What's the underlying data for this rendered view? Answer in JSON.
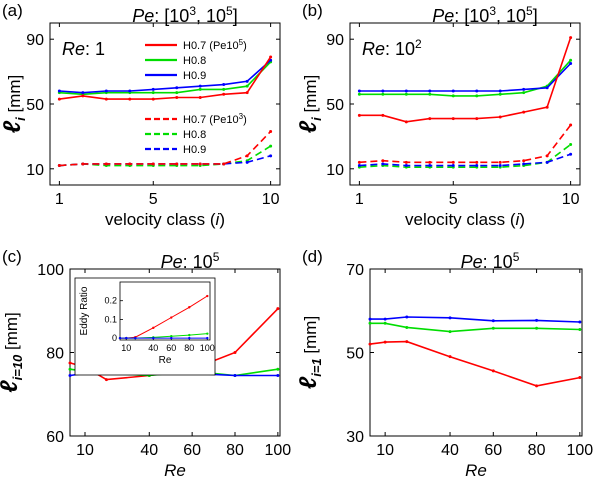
{
  "chart_data": [
    {
      "panel": "(a)",
      "type": "line",
      "title_prefix": "Pe",
      "title_rest": ": [10",
      "title_sup1": "3",
      "title_mid": ", 10",
      "title_sup2": "5",
      "title_end": "]",
      "tag": "Re",
      "tag_rest": ": 1",
      "xlabel": "velocity class (",
      "xlabel_var": "i",
      "xlabel_end": ")",
      "ylabel": "ℓ",
      "ylabel_sub": "i",
      "ylabel_unit": "[mm]",
      "xlim": [
        0.6,
        10.4
      ],
      "ylim": [
        0,
        100
      ],
      "xticks": [
        1,
        5,
        10
      ],
      "xticklabels": [
        "1",
        "5",
        "10"
      ],
      "yticks": [
        10,
        50,
        90
      ],
      "yticklabels": [
        "10",
        "50",
        "90"
      ],
      "legend": {
        "solid_entries": [
          {
            "name": "H0.7",
            "suffix": " (Pe10",
            "sup": "5",
            "end": ")",
            "color": "#ff0000"
          },
          {
            "name": "H0.8",
            "suffix": "",
            "color": "#00dd00"
          },
          {
            "name": "H0.9",
            "suffix": "",
            "color": "#0000ff"
          }
        ],
        "dashed_entries": [
          {
            "name": "H0.7",
            "suffix": " (Pe10",
            "sup": "3",
            "end": ")",
            "color": "#ff0000"
          },
          {
            "name": "H0.8",
            "suffix": "",
            "color": "#00dd00"
          },
          {
            "name": "H0.9",
            "suffix": "",
            "color": "#0000ff"
          }
        ]
      },
      "series": [
        {
          "color": "#00dd00",
          "style": "solid",
          "x": [
            1,
            2,
            3,
            4,
            5,
            6,
            7,
            8,
            9,
            10
          ],
          "y": [
            57,
            56,
            57,
            57,
            57,
            57,
            59,
            59,
            61,
            76
          ]
        },
        {
          "color": "#0000ff",
          "style": "solid",
          "x": [
            1,
            2,
            3,
            4,
            5,
            6,
            7,
            8,
            9,
            10
          ],
          "y": [
            58,
            57,
            58,
            58,
            59,
            60,
            61,
            62,
            64,
            77
          ]
        },
        {
          "color": "#ff0000",
          "style": "solid",
          "x": [
            1,
            2,
            3,
            4,
            5,
            6,
            7,
            8,
            9,
            10
          ],
          "y": [
            53,
            55,
            53,
            53,
            53,
            54,
            54,
            56,
            57,
            79
          ]
        },
        {
          "color": "#00dd00",
          "style": "dashed",
          "x": [
            1,
            2,
            3,
            4,
            5,
            6,
            7,
            8,
            9,
            10
          ],
          "y": [
            12,
            13,
            12,
            12,
            12,
            12,
            12,
            13,
            15,
            24
          ]
        },
        {
          "color": "#0000ff",
          "style": "dashed",
          "x": [
            1,
            2,
            3,
            4,
            5,
            6,
            7,
            8,
            9,
            10
          ],
          "y": [
            12,
            13,
            13,
            13,
            13,
            13,
            13,
            13,
            14,
            18
          ]
        },
        {
          "color": "#ff0000",
          "style": "dashed",
          "x": [
            1,
            2,
            3,
            4,
            5,
            6,
            7,
            8,
            9,
            10
          ],
          "y": [
            12,
            13,
            13,
            13,
            13,
            13,
            13,
            13,
            18,
            33
          ]
        }
      ]
    },
    {
      "panel": "(b)",
      "type": "line",
      "title_prefix": "Pe",
      "title_rest": ": [10",
      "title_sup1": "3",
      "title_mid": ", 10",
      "title_sup2": "5",
      "title_end": "]",
      "tag": "Re",
      "tag_rest": ": 10",
      "tag_sup": "2",
      "xlabel": "velocity class (",
      "xlabel_var": "i",
      "xlabel_end": ")",
      "ylabel": "ℓ",
      "ylabel_sub": "i",
      "ylabel_unit": "[mm]",
      "xlim": [
        0.6,
        10.4
      ],
      "ylim": [
        0,
        100
      ],
      "xticks": [
        1,
        5,
        10
      ],
      "xticklabels": [
        "1",
        "5",
        "10"
      ],
      "yticks": [
        10,
        50,
        90
      ],
      "yticklabels": [
        "10",
        "50",
        "90"
      ],
      "series": [
        {
          "color": "#00dd00",
          "style": "solid",
          "x": [
            1,
            2,
            3,
            4,
            5,
            6,
            7,
            8,
            9,
            10
          ],
          "y": [
            56,
            56,
            56,
            56,
            55,
            55,
            56,
            57,
            61,
            77
          ]
        },
        {
          "color": "#0000ff",
          "style": "solid",
          "x": [
            1,
            2,
            3,
            4,
            5,
            6,
            7,
            8,
            9,
            10
          ],
          "y": [
            58,
            58,
            58,
            58,
            58,
            58,
            58,
            59,
            60,
            75
          ]
        },
        {
          "color": "#ff0000",
          "style": "solid",
          "x": [
            1,
            2,
            3,
            4,
            5,
            6,
            7,
            8,
            9,
            10
          ],
          "y": [
            43,
            43,
            39,
            41,
            41,
            41,
            42,
            45,
            48,
            91
          ]
        },
        {
          "color": "#00dd00",
          "style": "dashed",
          "x": [
            1,
            2,
            3,
            4,
            5,
            6,
            7,
            8,
            9,
            10
          ],
          "y": [
            11,
            12,
            11,
            11,
            11,
            11,
            11,
            12,
            14,
            25
          ]
        },
        {
          "color": "#0000ff",
          "style": "dashed",
          "x": [
            1,
            2,
            3,
            4,
            5,
            6,
            7,
            8,
            9,
            10
          ],
          "y": [
            12,
            13,
            12,
            12,
            12,
            12,
            12,
            13,
            14,
            19
          ]
        },
        {
          "color": "#ff0000",
          "style": "dashed",
          "x": [
            1,
            2,
            3,
            4,
            5,
            6,
            7,
            8,
            9,
            10
          ],
          "y": [
            14,
            15,
            14,
            14,
            14,
            14,
            14,
            15,
            18,
            37
          ]
        }
      ]
    },
    {
      "panel": "(c)",
      "type": "line",
      "title_prefix": "Pe",
      "title_rest": ": 10",
      "title_sup1": "5",
      "xlabel_var": "Re",
      "ylabel": "ℓ",
      "ylabel_sub": "i=10",
      "ylabel_unit": "[mm]",
      "xlim": [
        3,
        101
      ],
      "ylim": [
        60,
        100
      ],
      "xticks": [
        10,
        40,
        60,
        80,
        100
      ],
      "xticklabels": [
        "10",
        "40",
        "60",
        "80",
        "100"
      ],
      "yticks": [
        60,
        80,
        100
      ],
      "yticklabels": [
        "60",
        "80",
        "100"
      ],
      "series": [
        {
          "color": "#ff0000",
          "style": "solid",
          "x": [
            3,
            10,
            20,
            40,
            60,
            80,
            100
          ],
          "y": [
            77.5,
            76.5,
            73.5,
            74.5,
            76,
            80,
            90.5
          ]
        },
        {
          "color": "#00dd00",
          "style": "solid",
          "x": [
            3,
            10,
            20,
            40,
            60,
            80,
            100
          ],
          "y": [
            76,
            75.5,
            75,
            74.5,
            75.5,
            74.5,
            76
          ]
        },
        {
          "color": "#0000ff",
          "style": "solid",
          "x": [
            3,
            10,
            20,
            40,
            60,
            80,
            100
          ],
          "y": [
            74.5,
            75,
            75,
            75,
            75,
            74.5,
            74.5
          ]
        }
      ],
      "inset": {
        "type": "line",
        "ylabel": "Eddy Ratio",
        "xlabel": "Re",
        "xlim": [
          3,
          103
        ],
        "ylim": [
          -0.01,
          0.3
        ],
        "xticks": [
          10,
          40,
          60,
          80,
          100
        ],
        "xticklabels": [
          "10",
          "40",
          "60",
          "80",
          "100"
        ],
        "yticks": [
          0,
          0.1,
          0.2
        ],
        "yticklabels": [
          "0",
          "0.1",
          "0.2"
        ],
        "series": [
          {
            "color": "#ff0000",
            "x": [
              3,
              10,
              20,
              40,
              60,
              80,
              100
            ],
            "y": [
              0,
              0,
              0.005,
              0.055,
              0.11,
              0.165,
              0.225
            ]
          },
          {
            "color": "#00dd00",
            "x": [
              3,
              10,
              20,
              40,
              60,
              80,
              100
            ],
            "y": [
              0,
              0,
              0,
              0.004,
              0.01,
              0.016,
              0.024
            ]
          },
          {
            "color": "#0000ff",
            "x": [
              3,
              10,
              20,
              40,
              60,
              80,
              100
            ],
            "y": [
              0,
              0,
              0,
              0,
              0,
              0,
              0
            ]
          }
        ]
      }
    },
    {
      "panel": "(d)",
      "type": "line",
      "title_prefix": "Pe",
      "title_rest": ": 10",
      "title_sup1": "5",
      "xlabel_var": "Re",
      "ylabel": "ℓ",
      "ylabel_sub": "i=1",
      "ylabel_unit": "[mm]",
      "xlim": [
        3,
        101
      ],
      "ylim": [
        30,
        70
      ],
      "xticks": [
        10,
        40,
        60,
        80,
        100
      ],
      "xticklabels": [
        "10",
        "40",
        "60",
        "80",
        "100"
      ],
      "yticks": [
        30,
        50,
        70
      ],
      "yticklabels": [
        "30",
        "50",
        "70"
      ],
      "series": [
        {
          "color": "#0000ff",
          "style": "solid",
          "x": [
            3,
            10,
            20,
            40,
            60,
            80,
            100
          ],
          "y": [
            58,
            58,
            58.5,
            58.3,
            57.6,
            57.7,
            57.3
          ]
        },
        {
          "color": "#00dd00",
          "style": "solid",
          "x": [
            3,
            10,
            20,
            40,
            60,
            80,
            100
          ],
          "y": [
            57,
            57,
            56,
            55,
            55.8,
            55.8,
            55.5
          ]
        },
        {
          "color": "#ff0000",
          "style": "solid",
          "x": [
            3,
            10,
            20,
            40,
            60,
            80,
            100
          ],
          "y": [
            52,
            52.5,
            52.6,
            49,
            45.6,
            42,
            44
          ]
        }
      ]
    }
  ]
}
